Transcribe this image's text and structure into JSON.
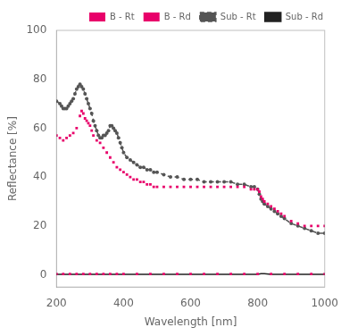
{
  "chart_data": {
    "type": "line",
    "xlabel": "Wavelength [nm]",
    "ylabel": "Reflectance [%]",
    "xlim": [
      200,
      1000
    ],
    "ylim": [
      -5,
      100
    ],
    "xticks": [
      200,
      400,
      600,
      800,
      1000
    ],
    "yticks": [
      0,
      20,
      40,
      60,
      80,
      100
    ],
    "grid": false,
    "legend": "upper right",
    "series": [
      {
        "name": "B - Rt",
        "color": "#e8006a",
        "marker": "square",
        "line_style": "none",
        "x": [
          200,
          210,
          220,
          230,
          240,
          250,
          260,
          270,
          275,
          280,
          285,
          290,
          295,
          300,
          305,
          310,
          320,
          330,
          340,
          350,
          360,
          370,
          380,
          390,
          400,
          410,
          420,
          430,
          440,
          450,
          460,
          470,
          480,
          490,
          500,
          520,
          540,
          560,
          580,
          600,
          620,
          640,
          660,
          680,
          700,
          720,
          740,
          760,
          780,
          790,
          800,
          805,
          810,
          815,
          820,
          830,
          840,
          850,
          860,
          870,
          880,
          900,
          920,
          940,
          960,
          980,
          1000
        ],
        "values": [
          57,
          56,
          55,
          56,
          57,
          58,
          60,
          65,
          67,
          66,
          64,
          63,
          62,
          61,
          59,
          57,
          55,
          54,
          52,
          50,
          48,
          46,
          44,
          43,
          42,
          41,
          40,
          39,
          39,
          38,
          38,
          37,
          37,
          36,
          36,
          36,
          36,
          36,
          36,
          36,
          36,
          36,
          36,
          36,
          36,
          36,
          36,
          36,
          35,
          35,
          35,
          34,
          32,
          31,
          30,
          29,
          28,
          27,
          26,
          25,
          24,
          22,
          21,
          20,
          20,
          20,
          20
        ]
      },
      {
        "name": "B - Rd",
        "color": "#e8006a",
        "marker": "square",
        "line_style": "none",
        "x": [
          200,
          220,
          240,
          260,
          280,
          300,
          320,
          340,
          360,
          380,
          400,
          440,
          480,
          520,
          560,
          600,
          640,
          680,
          720,
          760,
          800,
          840,
          880,
          920,
          960,
          1000
        ],
        "values": [
          0.3,
          0.3,
          0.3,
          0.3,
          0.3,
          0.3,
          0.3,
          0.3,
          0.3,
          0.3,
          0.3,
          0.3,
          0.3,
          0.3,
          0.3,
          0.3,
          0.3,
          0.3,
          0.3,
          0.3,
          0.3,
          0.3,
          0.3,
          0.3,
          0.3,
          0.3
        ]
      },
      {
        "name": "Sub - Rt",
        "color": "#555555",
        "marker": "circle",
        "line_style": "dashed",
        "x": [
          200,
          210,
          215,
          220,
          225,
          230,
          235,
          240,
          245,
          250,
          255,
          260,
          265,
          270,
          275,
          280,
          285,
          290,
          295,
          300,
          305,
          310,
          315,
          320,
          325,
          330,
          335,
          340,
          345,
          350,
          355,
          360,
          365,
          370,
          375,
          380,
          385,
          390,
          395,
          400,
          410,
          420,
          430,
          440,
          450,
          460,
          470,
          480,
          490,
          500,
          520,
          540,
          560,
          580,
          600,
          620,
          640,
          660,
          680,
          700,
          720,
          740,
          760,
          780,
          790,
          800,
          805,
          810,
          815,
          820,
          830,
          840,
          850,
          860,
          870,
          880,
          900,
          920,
          940,
          960,
          980,
          1000
        ],
        "values": [
          71,
          70,
          69,
          68,
          68,
          68,
          69,
          70,
          71,
          72,
          74,
          76,
          77,
          78,
          77,
          76,
          74,
          72,
          70,
          68,
          66,
          63,
          61,
          59,
          57,
          56,
          56,
          57,
          57,
          58,
          59,
          61,
          61,
          60,
          59,
          58,
          56,
          54,
          52,
          50,
          48,
          47,
          46,
          45,
          44,
          44,
          43,
          43,
          42,
          42,
          41,
          40,
          40,
          39,
          39,
          39,
          38,
          38,
          38,
          38,
          38,
          37,
          37,
          36,
          36,
          35,
          33,
          31,
          30,
          29,
          28,
          27,
          26,
          25,
          24,
          23,
          21,
          20,
          19,
          18,
          17,
          17
        ]
      },
      {
        "name": "Sub - Rd",
        "color": "#222222",
        "marker": "none",
        "line_style": "solid",
        "x": [
          200,
          220,
          240,
          260,
          280,
          300,
          320,
          340,
          360,
          380,
          400,
          440,
          480,
          520,
          560,
          600,
          640,
          680,
          720,
          760,
          800,
          810,
          820,
          840,
          860,
          880,
          900,
          920,
          940,
          960,
          980,
          1000
        ],
        "values": [
          0.2,
          0.2,
          0.2,
          0.2,
          0.2,
          0.2,
          0.2,
          0.2,
          0.2,
          0.2,
          0.2,
          0.2,
          0.2,
          0.2,
          0.2,
          0.2,
          0.2,
          0.2,
          0.2,
          0.2,
          0.2,
          0.5,
          0.5,
          0.2,
          0.2,
          0.2,
          0.2,
          0.2,
          0.2,
          0.2,
          0.2,
          0.2
        ]
      }
    ]
  }
}
